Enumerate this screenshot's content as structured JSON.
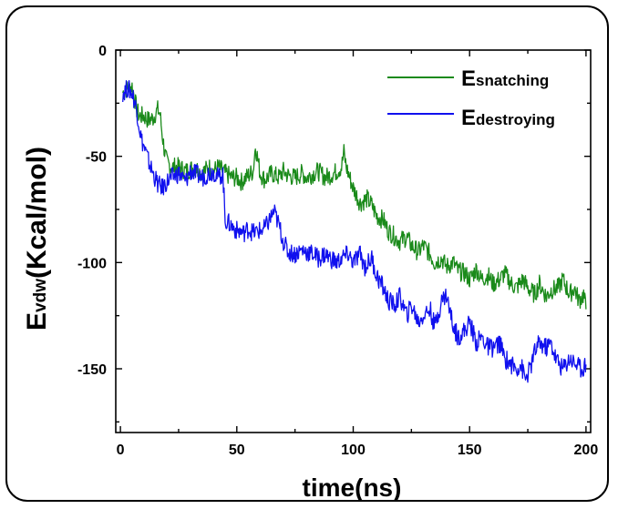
{
  "chart_data": {
    "type": "line",
    "title": "",
    "xlabel": "time(ns)",
    "ylabel_main": "E",
    "ylabel_sub": "vdw",
    "ylabel_rest": "(Kcal/mol)",
    "xlim": [
      -2,
      202
    ],
    "ylim": [
      -180,
      0
    ],
    "x_ticks": [
      0,
      50,
      100,
      150,
      200
    ],
    "y_ticks": [
      0,
      -50,
      -100,
      -150
    ],
    "grid": false,
    "legend_position": "top-right",
    "series": [
      {
        "name_main": "E",
        "name_sub": "snatching",
        "color": "#1a8a1a",
        "x": [
          1,
          3,
          5,
          6,
          7,
          8,
          10,
          12,
          14,
          16,
          17,
          18,
          19,
          20,
          22,
          25,
          28,
          30,
          32,
          35,
          38,
          40,
          42,
          45,
          48,
          50,
          52,
          55,
          57,
          58,
          60,
          62,
          65,
          68,
          70,
          72,
          75,
          78,
          80,
          83,
          85,
          88,
          90,
          93,
          95,
          96,
          97,
          100,
          103,
          106,
          108,
          110,
          113,
          115,
          118,
          120,
          123,
          125,
          128,
          130,
          133,
          135,
          138,
          140,
          143,
          145,
          148,
          150,
          153,
          155,
          158,
          160,
          163,
          165,
          168,
          170,
          173,
          175,
          178,
          180,
          183,
          185,
          188,
          190,
          193,
          195,
          197,
          199,
          200
        ],
        "y": [
          -20,
          -18,
          -17,
          -22,
          -28,
          -31,
          -31,
          -33,
          -32,
          -28,
          -30,
          -40,
          -48,
          -53,
          -55,
          -55,
          -57,
          -56,
          -55,
          -58,
          -55,
          -57,
          -55,
          -58,
          -60,
          -60,
          -62,
          -59,
          -57,
          -45,
          -58,
          -61,
          -58,
          -60,
          -57,
          -59,
          -60,
          -58,
          -60,
          -58,
          -57,
          -60,
          -59,
          -57,
          -55,
          -48,
          -55,
          -65,
          -72,
          -70,
          -73,
          -78,
          -80,
          -85,
          -88,
          -90,
          -88,
          -92,
          -95,
          -92,
          -96,
          -100,
          -98,
          -102,
          -100,
          -104,
          -105,
          -108,
          -103,
          -108,
          -106,
          -110,
          -108,
          -105,
          -110,
          -112,
          -108,
          -112,
          -115,
          -110,
          -116,
          -113,
          -112,
          -108,
          -115,
          -112,
          -118,
          -115,
          -122
        ]
      },
      {
        "name_main": "E",
        "name_sub": "destroying",
        "color": "#1010ee",
        "x": [
          1,
          3,
          5,
          7,
          8,
          9,
          10,
          12,
          14,
          16,
          18,
          20,
          22,
          25,
          28,
          30,
          32,
          35,
          38,
          40,
          42,
          44,
          45,
          47,
          50,
          53,
          55,
          57,
          60,
          62,
          64,
          66,
          68,
          70,
          72,
          75,
          78,
          80,
          83,
          85,
          88,
          90,
          93,
          95,
          98,
          100,
          103,
          105,
          108,
          110,
          113,
          115,
          118,
          120,
          123,
          125,
          128,
          130,
          133,
          135,
          138,
          140,
          143,
          145,
          148,
          150,
          153,
          155,
          158,
          160,
          163,
          165,
          168,
          170,
          172,
          174,
          176,
          178,
          180,
          183,
          185,
          187,
          190,
          193,
          195,
          198,
          200
        ],
        "y": [
          -20,
          -18,
          -20,
          -28,
          -35,
          -42,
          -45,
          -52,
          -58,
          -63,
          -65,
          -62,
          -60,
          -58,
          -62,
          -57,
          -58,
          -60,
          -58,
          -57,
          -60,
          -58,
          -80,
          -82,
          -85,
          -86,
          -84,
          -86,
          -85,
          -84,
          -80,
          -76,
          -82,
          -90,
          -95,
          -96,
          -94,
          -95,
          -96,
          -98,
          -96,
          -98,
          -100,
          -98,
          -96,
          -100,
          -96,
          -102,
          -98,
          -106,
          -112,
          -118,
          -120,
          -116,
          -125,
          -120,
          -128,
          -125,
          -122,
          -130,
          -118,
          -115,
          -130,
          -135,
          -132,
          -128,
          -138,
          -135,
          -140,
          -140,
          -138,
          -145,
          -148,
          -150,
          -148,
          -155,
          -150,
          -142,
          -138,
          -140,
          -138,
          -145,
          -150,
          -145,
          -147,
          -150,
          -148
        ]
      }
    ]
  }
}
